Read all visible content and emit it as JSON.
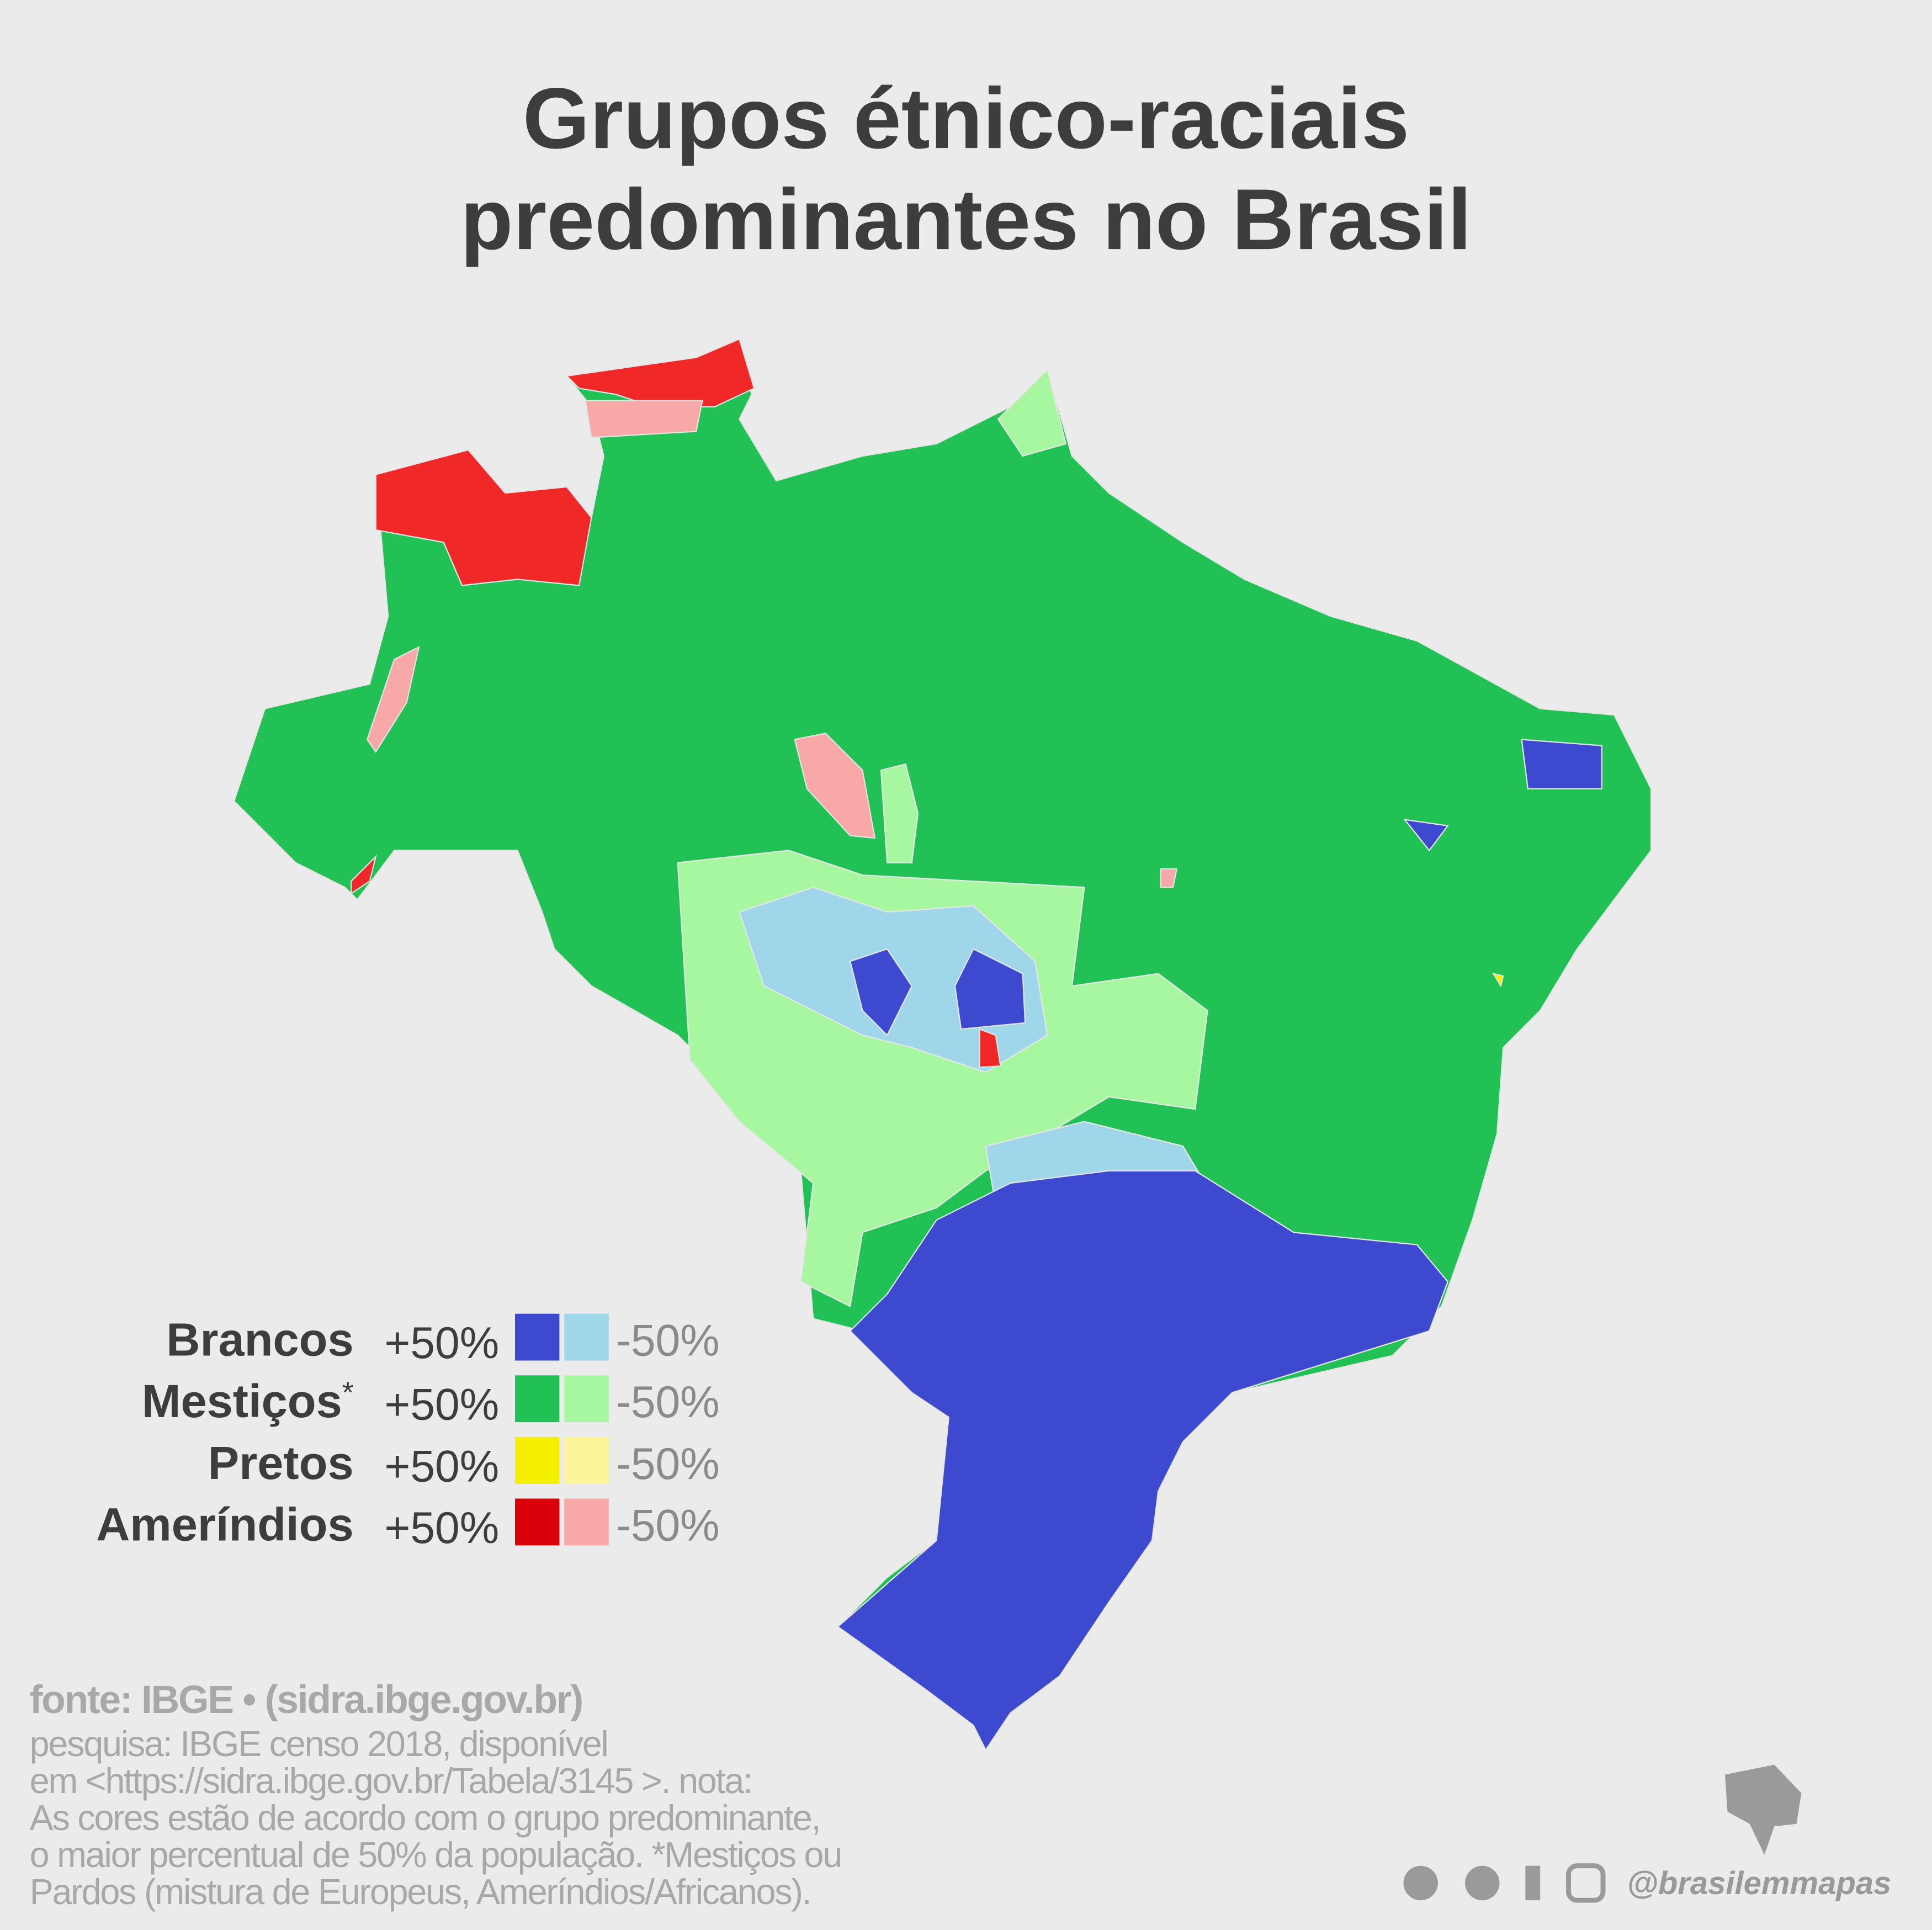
{
  "title_lines": [
    "Grupos étnico-raciais",
    "predominantes no Brasil"
  ],
  "legend": [
    {
      "name": "Brancos",
      "note": null,
      "plus_label": "+50%",
      "minus_label": "-50%",
      "plus_color": "#3d49cf",
      "minus_color": "#9fd6ea"
    },
    {
      "name": "Mestiços",
      "note": "*",
      "plus_label": "+50%",
      "minus_label": "-50%",
      "plus_color": "#22c155",
      "minus_color": "#a6f7a0"
    },
    {
      "name": "Pretos",
      "note": null,
      "plus_label": "+50%",
      "minus_label": "-50%",
      "plus_color": "#f5ef00",
      "minus_color": "#fdf59a"
    },
    {
      "name": "Ameríndios",
      "note": null,
      "plus_label": "+50%",
      "minus_label": "-50%",
      "plus_color": "#d9000a",
      "minus_color": "#f9a8a8"
    }
  ],
  "source": {
    "heading": "fonte: IBGE • (sidra.ibge.gov.br)",
    "lines": [
      "pesquisa: IBGE censo 2018, disponível",
      "em <https://sidra.ibge.gov.br/Tabela/3145 >. nota:",
      "As cores estão de acordo com o grupo predominante,",
      "o maior percentual de 50% da população. *Mestiços ou",
      "Pardos (mistura de Europeus, Ameríndios/Africanos)."
    ]
  },
  "handle": "@brasilemmapas"
}
